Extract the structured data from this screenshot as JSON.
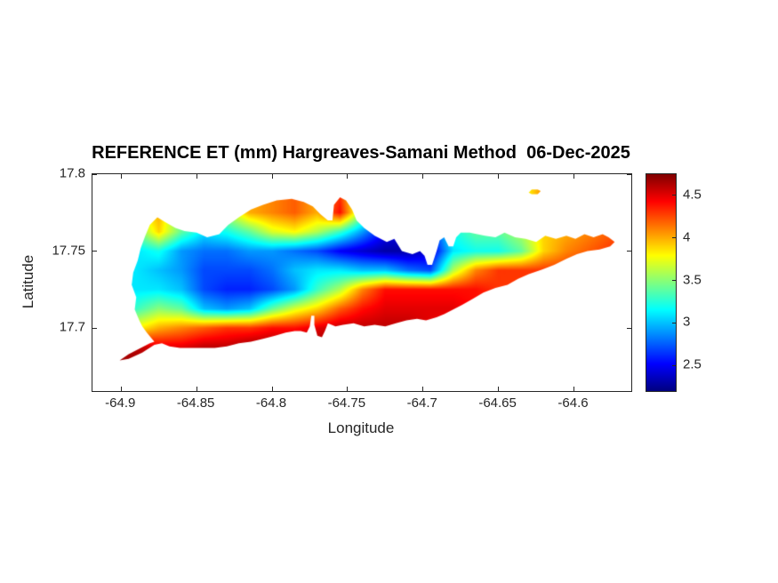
{
  "figure": {
    "background": "#ffffff",
    "text_color": "#262626",
    "title_color": "#000000"
  },
  "chart_data": {
    "type": "heatmap",
    "title": "REFERENCE ET (mm) Hargreaves-Samani Method  06-Dec-2025",
    "xlabel": "Longitude",
    "ylabel": "Latitude",
    "xlim": [
      -64.919,
      -64.562
    ],
    "ylim": [
      17.659,
      17.8
    ],
    "xticks": [
      -64.9,
      -64.85,
      -64.8,
      -64.75,
      -64.7,
      -64.65,
      -64.6
    ],
    "xtick_labels": [
      "-64.9",
      "-64.85",
      "-64.8",
      "-64.75",
      "-64.7",
      "-64.65",
      "-64.6"
    ],
    "yticks": [
      17.8,
      17.75,
      17.7
    ],
    "ytick_labels": [
      "17.8",
      "17.75",
      "17.7"
    ],
    "grid_lines": false,
    "legend_position": "none",
    "colorbar": {
      "cmin": 2.2,
      "cmax": 4.75,
      "ticks": [
        2.5,
        3,
        3.5,
        4,
        4.5
      ],
      "tick_labels": [
        "2.5",
        "3",
        "3.5",
        "4",
        "4.5"
      ],
      "colormap_name": "jet",
      "colormap": [
        [
          0.0,
          "#000080"
        ],
        [
          0.125,
          "#0000ff"
        ],
        [
          0.375,
          "#00ffff"
        ],
        [
          0.625,
          "#ffff00"
        ],
        [
          0.875,
          "#ff0000"
        ],
        [
          1.0,
          "#800000"
        ]
      ]
    },
    "field_grid": {
      "lon_start": -64.92,
      "lon_step": 0.015,
      "ncols": 25,
      "lat_start": 17.8,
      "lat_step": -0.0125,
      "nrows": 12,
      "values": [
        [
          3.6,
          3.7,
          3.9,
          4.0,
          3.5,
          3.4,
          3.7,
          4.0,
          4.1,
          4.2,
          4.0,
          4.3,
          3.5,
          3.1,
          3.0,
          3.1,
          3.3,
          3.4,
          3.5,
          3.7,
          4.1,
          4.0,
          4.1,
          4.2,
          4.2
        ],
        [
          3.6,
          3.7,
          3.9,
          4.0,
          3.5,
          3.4,
          3.7,
          4.0,
          4.1,
          4.2,
          4.0,
          4.3,
          3.5,
          3.1,
          3.0,
          3.1,
          3.3,
          3.4,
          3.5,
          3.7,
          4.1,
          4.0,
          4.1,
          4.2,
          4.2
        ],
        [
          3.5,
          3.6,
          3.8,
          4.0,
          3.4,
          3.3,
          3.6,
          4.0,
          4.1,
          4.2,
          4.0,
          4.4,
          3.5,
          2.9,
          2.7,
          2.9,
          3.3,
          3.4,
          3.5,
          3.7,
          4.0,
          4.0,
          4.1,
          4.2,
          4.2
        ],
        [
          3.4,
          3.4,
          3.4,
          3.9,
          3.4,
          3.1,
          3.2,
          3.4,
          3.7,
          3.8,
          3.6,
          3.3,
          2.9,
          2.5,
          2.4,
          2.6,
          3.2,
          3.4,
          3.4,
          3.6,
          3.9,
          4.0,
          4.1,
          4.2,
          4.2
        ],
        [
          3.1,
          3.1,
          3.1,
          3.2,
          2.9,
          2.8,
          2.8,
          2.9,
          2.9,
          2.8,
          2.7,
          2.5,
          2.4,
          2.3,
          2.3,
          2.4,
          3.1,
          3.2,
          3.2,
          3.4,
          3.9,
          4.1,
          4.2,
          4.3,
          4.2
        ],
        [
          3.1,
          3.1,
          3.1,
          3.0,
          2.9,
          2.7,
          2.7,
          2.7,
          2.8,
          3.0,
          3.1,
          3.1,
          3.0,
          3.0,
          2.8,
          2.7,
          3.6,
          4.1,
          4.3,
          4.3,
          4.3,
          4.3,
          4.4,
          4.3,
          4.2
        ],
        [
          3.1,
          3.1,
          3.1,
          3.1,
          3.0,
          2.7,
          2.6,
          2.6,
          2.7,
          2.9,
          3.3,
          3.6,
          4.1,
          4.4,
          4.4,
          4.4,
          4.4,
          4.4,
          4.3,
          4.3,
          4.3,
          4.3,
          4.3,
          4.2,
          4.2
        ],
        [
          3.3,
          3.3,
          3.3,
          3.5,
          3.4,
          3.0,
          2.9,
          3.0,
          3.4,
          3.7,
          3.9,
          4.2,
          4.4,
          4.5,
          4.5,
          4.5,
          4.5,
          4.4,
          4.3,
          4.3,
          4.3,
          4.2,
          4.2,
          4.2,
          4.2
        ],
        [
          3.8,
          3.8,
          3.8,
          4.0,
          4.1,
          4.2,
          4.3,
          4.3,
          4.4,
          4.4,
          4.5,
          4.6,
          4.6,
          4.6,
          4.6,
          4.5,
          4.4,
          4.4,
          4.4,
          4.3,
          4.3,
          4.2,
          4.2,
          4.2,
          4.2
        ],
        [
          4.6,
          4.6,
          4.6,
          4.5,
          4.5,
          4.6,
          4.6,
          4.7,
          4.7,
          4.7,
          4.7,
          4.7,
          4.7,
          4.7,
          4.6,
          4.6,
          4.5,
          4.5,
          4.4,
          4.3,
          4.3,
          4.2,
          4.2,
          4.2,
          4.2
        ],
        [
          4.7,
          4.7,
          4.7,
          4.7,
          4.7,
          4.7,
          4.7,
          4.7,
          4.7,
          4.7,
          4.7,
          4.7,
          4.7,
          4.7,
          4.6,
          4.6,
          4.5,
          4.5,
          4.4,
          4.3,
          4.3,
          4.2,
          4.2,
          4.2,
          4.2
        ],
        [
          4.7,
          4.7,
          4.7,
          4.7,
          4.7,
          4.7,
          4.7,
          4.7,
          4.7,
          4.7,
          4.7,
          4.7,
          4.7,
          4.7,
          4.6,
          4.6,
          4.5,
          4.5,
          4.4,
          4.3,
          4.3,
          4.2,
          4.2,
          4.2,
          4.2
        ]
      ]
    },
    "island_outline": [
      [
        -64.901,
        17.679
      ],
      [
        -64.895,
        17.683
      ],
      [
        -64.887,
        17.687
      ],
      [
        -64.881,
        17.69
      ],
      [
        -64.878,
        17.691
      ],
      [
        -64.883,
        17.697
      ],
      [
        -64.886,
        17.701
      ],
      [
        -64.888,
        17.705
      ],
      [
        -64.891,
        17.712
      ],
      [
        -64.89,
        17.72
      ],
      [
        -64.893,
        17.728
      ],
      [
        -64.892,
        17.736
      ],
      [
        -64.889,
        17.744
      ],
      [
        -64.887,
        17.752
      ],
      [
        -64.884,
        17.76
      ],
      [
        -64.881,
        17.767
      ],
      [
        -64.876,
        17.772
      ],
      [
        -64.871,
        17.769
      ],
      [
        -64.864,
        17.765
      ],
      [
        -64.858,
        17.763
      ],
      [
        -64.85,
        17.762
      ],
      [
        -64.843,
        17.759
      ],
      [
        -64.835,
        17.761
      ],
      [
        -64.829,
        17.767
      ],
      [
        -64.822,
        17.772
      ],
      [
        -64.814,
        17.777
      ],
      [
        -64.806,
        17.78
      ],
      [
        -64.797,
        17.783
      ],
      [
        -64.787,
        17.784
      ],
      [
        -64.779,
        17.782
      ],
      [
        -64.773,
        17.779
      ],
      [
        -64.768,
        17.774
      ],
      [
        -64.763,
        17.77
      ],
      [
        -64.76,
        17.77
      ],
      [
        -64.759,
        17.78
      ],
      [
        -64.755,
        17.785
      ],
      [
        -64.751,
        17.783
      ],
      [
        -64.747,
        17.777
      ],
      [
        -64.744,
        17.77
      ],
      [
        -64.739,
        17.765
      ],
      [
        -64.732,
        17.76
      ],
      [
        -64.724,
        17.756
      ],
      [
        -64.719,
        17.758
      ],
      [
        -64.714,
        17.75
      ],
      [
        -64.707,
        17.748
      ],
      [
        -64.702,
        17.75
      ],
      [
        -64.699,
        17.747
      ],
      [
        -64.697,
        17.741
      ],
      [
        -64.694,
        17.741
      ],
      [
        -64.691,
        17.75
      ],
      [
        -64.689,
        17.757
      ],
      [
        -64.686,
        17.759
      ],
      [
        -64.683,
        17.753
      ],
      [
        -64.68,
        17.753
      ],
      [
        -64.678,
        17.759
      ],
      [
        -64.675,
        17.762
      ],
      [
        -64.669,
        17.762
      ],
      [
        -64.659,
        17.76
      ],
      [
        -64.652,
        17.759
      ],
      [
        -64.646,
        17.762
      ],
      [
        -64.639,
        17.759
      ],
      [
        -64.632,
        17.758
      ],
      [
        -64.625,
        17.756
      ],
      [
        -64.619,
        17.76
      ],
      [
        -64.612,
        17.758
      ],
      [
        -64.605,
        17.76
      ],
      [
        -64.599,
        17.758
      ],
      [
        -64.593,
        17.761
      ],
      [
        -64.587,
        17.759
      ],
      [
        -64.581,
        17.761
      ],
      [
        -64.577,
        17.759
      ],
      [
        -64.573,
        17.756
      ],
      [
        -64.576,
        17.753
      ],
      [
        -64.583,
        17.751
      ],
      [
        -64.591,
        17.75
      ],
      [
        -64.598,
        17.748
      ],
      [
        -64.605,
        17.745
      ],
      [
        -64.613,
        17.741
      ],
      [
        -64.621,
        17.738
      ],
      [
        -64.63,
        17.735
      ],
      [
        -64.637,
        17.732
      ],
      [
        -64.644,
        17.728
      ],
      [
        -64.652,
        17.726
      ],
      [
        -64.66,
        17.723
      ],
      [
        -64.667,
        17.719
      ],
      [
        -64.674,
        17.715
      ],
      [
        -64.68,
        17.712
      ],
      [
        -64.686,
        17.709
      ],
      [
        -64.691,
        17.707
      ],
      [
        -64.698,
        17.705
      ],
      [
        -64.704,
        17.706
      ],
      [
        -64.711,
        17.705
      ],
      [
        -64.718,
        17.703
      ],
      [
        -64.725,
        17.701
      ],
      [
        -64.732,
        17.702
      ],
      [
        -64.739,
        17.701
      ],
      [
        -64.746,
        17.703
      ],
      [
        -64.753,
        17.702
      ],
      [
        -64.758,
        17.701
      ],
      [
        -64.763,
        17.703
      ],
      [
        -64.765,
        17.698
      ],
      [
        -64.767,
        17.694
      ],
      [
        -64.77,
        17.695
      ],
      [
        -64.772,
        17.702
      ],
      [
        -64.772,
        17.708
      ],
      [
        -64.774,
        17.708
      ],
      [
        -64.775,
        17.701
      ],
      [
        -64.777,
        17.697
      ],
      [
        -64.781,
        17.698
      ],
      [
        -64.785,
        17.698
      ],
      [
        -64.791,
        17.697
      ],
      [
        -64.798,
        17.695
      ],
      [
        -64.806,
        17.693
      ],
      [
        -64.814,
        17.691
      ],
      [
        -64.822,
        17.69
      ],
      [
        -64.83,
        17.688
      ],
      [
        -64.838,
        17.687
      ],
      [
        -64.846,
        17.687
      ],
      [
        -64.853,
        17.687
      ],
      [
        -64.861,
        17.687
      ],
      [
        -64.868,
        17.688
      ],
      [
        -64.873,
        17.69
      ],
      [
        -64.878,
        17.689
      ],
      [
        -64.886,
        17.684
      ],
      [
        -64.895,
        17.68
      ]
    ],
    "islets": [
      {
        "name": "buck-island",
        "outline": [
          [
            -64.63,
            17.788
          ],
          [
            -64.628,
            17.79
          ],
          [
            -64.624,
            17.79
          ],
          [
            -64.622,
            17.789
          ],
          [
            -64.624,
            17.787
          ],
          [
            -64.628,
            17.787
          ]
        ]
      }
    ]
  }
}
